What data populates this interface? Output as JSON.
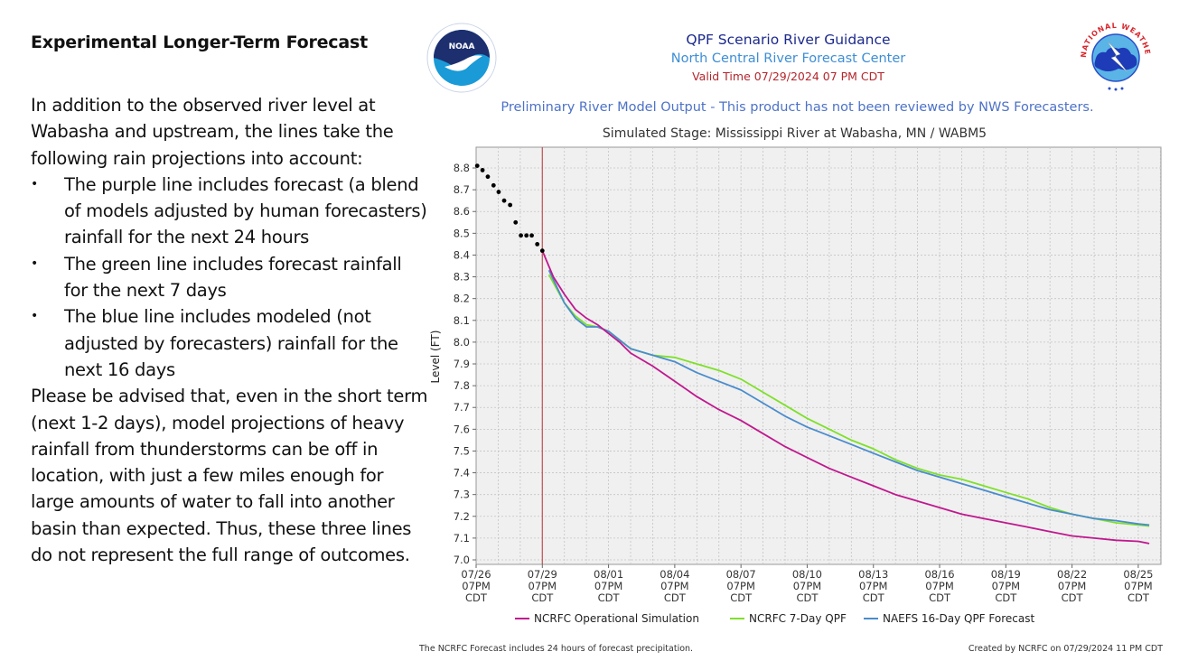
{
  "left_panel": {
    "heading": "Experimental Longer-Term Forecast",
    "intro": "In addition to the observed river level at Wabasha and upstream, the lines take the following rain projections into account:",
    "bullets": [
      "The purple line includes forecast (a blend of models adjusted by human forecasters) rainfall for the next 24 hours",
      "The green line includes forecast rainfall for the next 7 days",
      "The blue line includes modeled (not adjusted by forecasters) rainfall for the next 16 days"
    ],
    "bullet_glyph": "•",
    "closing": "Please be advised that, even in the short term (next 1-2 days), model projections of heavy rainfall from thunderstorms can be off in location, with just a few miles enough for large amounts of water to fall into another basin than expected. Thus, these three lines do not represent the full range of outcomes."
  },
  "header": {
    "title": "QPF Scenario River Guidance",
    "subtitle": "North Central River Forecast Center",
    "valid_time": "Valid Time 07/29/2024 07 PM CDT",
    "disclaimer": "Preliminary River Model Output - This product has not been reviewed by NWS Forecasters.",
    "left_logo": {
      "icon": "noaa-logo-icon",
      "text": "NOAA"
    },
    "right_logo": {
      "icon": "nws-logo-icon",
      "text": "NATIONAL WEATHER SERVICE"
    }
  },
  "footer": {
    "note": "The NCRFC Forecast includes 24 hours of forecast precipitation.",
    "created": "Created by NCRFC on 07/29/2024 11 PM CDT"
  },
  "colors": {
    "operational": "#c0188f",
    "qpf7": "#7ee02a",
    "naefs16": "#4a8ccc",
    "observed": "#000000",
    "valid_line": "#c0504d"
  },
  "chart_data": {
    "type": "line",
    "title": "Simulated Stage: Mississippi River at Wabasha, MN / WABM5",
    "xlabel": "",
    "ylabel": "Level (FT)",
    "x_unit": "days since 07/26 07PM CDT",
    "xlim": [
      0,
      31.1
    ],
    "ylim": [
      7.0,
      8.9
    ],
    "grid": true,
    "legend_position": "bottom",
    "valid_time_marker_x": 3,
    "x_ticks": [
      {
        "x": 0,
        "label": [
          "07/26",
          "07PM",
          "CDT"
        ]
      },
      {
        "x": 3,
        "label": [
          "07/29",
          "07PM",
          "CDT"
        ]
      },
      {
        "x": 6,
        "label": [
          "08/01",
          "07PM",
          "CDT"
        ]
      },
      {
        "x": 9,
        "label": [
          "08/04",
          "07PM",
          "CDT"
        ]
      },
      {
        "x": 12,
        "label": [
          "08/07",
          "07PM",
          "CDT"
        ]
      },
      {
        "x": 15,
        "label": [
          "08/10",
          "07PM",
          "CDT"
        ]
      },
      {
        "x": 18,
        "label": [
          "08/13",
          "07PM",
          "CDT"
        ]
      },
      {
        "x": 21,
        "label": [
          "08/16",
          "07PM",
          "CDT"
        ]
      },
      {
        "x": 24,
        "label": [
          "08/19",
          "07PM",
          "CDT"
        ]
      },
      {
        "x": 27,
        "label": [
          "08/22",
          "07PM",
          "CDT"
        ]
      },
      {
        "x": 30,
        "label": [
          "08/25",
          "07PM",
          "CDT"
        ]
      }
    ],
    "y_ticks": [
      "7.0",
      "7.1",
      "7.2",
      "7.3",
      "7.4",
      "7.5",
      "7.6",
      "7.7",
      "7.8",
      "7.9",
      "8.0",
      "8.1",
      "8.2",
      "8.3",
      "8.4",
      "8.5",
      "8.6",
      "8.7",
      "8.8"
    ],
    "observed": {
      "name": "Observed",
      "x": [
        0.05,
        0.29,
        0.53,
        0.79,
        1.02,
        1.27,
        1.54,
        1.79,
        2.03,
        2.28,
        2.52,
        2.77,
        3.0
      ],
      "y": [
        8.81,
        8.79,
        8.76,
        8.72,
        8.69,
        8.65,
        8.63,
        8.55,
        8.49,
        8.49,
        8.49,
        8.45,
        8.42
      ]
    },
    "series": [
      {
        "name": "NCRFC Operational Simulation",
        "color_key": "operational",
        "x": [
          3.0,
          3.5,
          4,
          4.5,
          5,
          5.5,
          6,
          6.5,
          7,
          8,
          9,
          10,
          11,
          12,
          13,
          14,
          15,
          16,
          17,
          18,
          19,
          20,
          21,
          22,
          23,
          24,
          25,
          26,
          27,
          28,
          29,
          30,
          30.5
        ],
        "y": [
          8.42,
          8.3,
          8.22,
          8.15,
          8.11,
          8.08,
          8.04,
          8.0,
          7.95,
          7.89,
          7.82,
          7.75,
          7.69,
          7.64,
          7.58,
          7.52,
          7.47,
          7.42,
          7.38,
          7.34,
          7.3,
          7.27,
          7.24,
          7.21,
          7.19,
          7.17,
          7.15,
          7.13,
          7.11,
          7.1,
          7.09,
          7.085,
          7.075
        ]
      },
      {
        "name": "NCRFC 7-Day QPF",
        "color_key": "qpf7",
        "x": [
          3.3,
          4,
          4.5,
          5,
          5.5,
          6,
          6.5,
          7,
          8,
          9,
          10,
          11,
          12,
          13,
          14,
          15,
          16,
          17,
          18,
          19,
          20,
          21,
          22,
          23,
          24,
          25,
          26,
          27,
          28,
          29,
          30,
          30.5
        ],
        "y": [
          8.31,
          8.18,
          8.12,
          8.08,
          8.07,
          8.05,
          8.01,
          7.97,
          7.94,
          7.93,
          7.9,
          7.87,
          7.83,
          7.77,
          7.71,
          7.65,
          7.6,
          7.55,
          7.51,
          7.46,
          7.42,
          7.39,
          7.37,
          7.34,
          7.31,
          7.28,
          7.24,
          7.21,
          7.19,
          7.17,
          7.16,
          7.155
        ]
      },
      {
        "name": "NAEFS 16-Day QPF Forecast",
        "color_key": "naefs16",
        "x": [
          3.3,
          4,
          4.5,
          5,
          5.5,
          6,
          6.5,
          7,
          8,
          9,
          10,
          11,
          12,
          13,
          14,
          15,
          16,
          17,
          18,
          19,
          20,
          21,
          22,
          23,
          24,
          25,
          26,
          27,
          28,
          29,
          30,
          30.5
        ],
        "y": [
          8.33,
          8.18,
          8.11,
          8.07,
          8.07,
          8.05,
          8.01,
          7.97,
          7.94,
          7.91,
          7.86,
          7.82,
          7.78,
          7.72,
          7.66,
          7.61,
          7.57,
          7.53,
          7.49,
          7.45,
          7.41,
          7.38,
          7.35,
          7.32,
          7.29,
          7.26,
          7.23,
          7.21,
          7.19,
          7.18,
          7.165,
          7.16
        ]
      }
    ]
  }
}
